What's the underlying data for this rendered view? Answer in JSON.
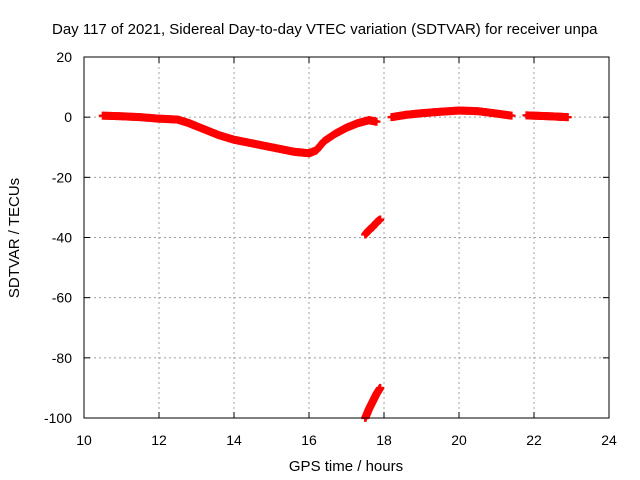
{
  "chart_data": {
    "type": "scatter",
    "title": "Day 117 of 2021, Sidereal Day-to-day VTEC variation (SDTVAR) for receiver unpa",
    "xlabel": "GPS time / hours",
    "ylabel": "SDTVAR / TECUs",
    "xlim": [
      10,
      24
    ],
    "ylim": [
      -100,
      20
    ],
    "xticks": [
      10,
      12,
      14,
      16,
      18,
      20,
      22,
      24
    ],
    "yticks": [
      -100,
      -80,
      -60,
      -40,
      -20,
      0,
      20
    ],
    "grid": true,
    "marker": "plus",
    "color": "#ff0000",
    "series": [
      {
        "name": "segment-1",
        "x": [
          10.5,
          11.0,
          11.5,
          12.0,
          12.5,
          12.8,
          13.0,
          13.3,
          13.6,
          14.0,
          14.4,
          14.8,
          15.2,
          15.6,
          16.0,
          16.2,
          16.4,
          16.7,
          17.0,
          17.3,
          17.6,
          17.8
        ],
        "y": [
          0.5,
          0.3,
          0.0,
          -0.5,
          -0.8,
          -2.0,
          -3.0,
          -4.5,
          -6.0,
          -7.5,
          -8.5,
          -9.5,
          -10.5,
          -11.5,
          -12.0,
          -11.0,
          -8.0,
          -5.5,
          -3.5,
          -2.0,
          -1.0,
          -1.5
        ]
      },
      {
        "name": "segment-2",
        "x": [
          18.2,
          18.6,
          19.0,
          19.5,
          20.0,
          20.5,
          21.0,
          21.4
        ],
        "y": [
          0.0,
          0.8,
          1.3,
          1.8,
          2.2,
          2.0,
          1.2,
          0.5
        ]
      },
      {
        "name": "segment-3",
        "x": [
          21.8,
          22.2,
          22.6,
          22.9
        ],
        "y": [
          0.6,
          0.4,
          0.2,
          0.0
        ]
      },
      {
        "name": "segment-4",
        "x": [
          17.5,
          17.6,
          17.7,
          17.8,
          17.9
        ],
        "y": [
          -39.0,
          -37.5,
          -36.5,
          -35.0,
          -34.0
        ]
      },
      {
        "name": "segment-5",
        "x": [
          17.5,
          17.6,
          17.7,
          17.8,
          17.9
        ],
        "y": [
          -100.0,
          -97.0,
          -94.5,
          -92.0,
          -90.0
        ]
      }
    ]
  }
}
